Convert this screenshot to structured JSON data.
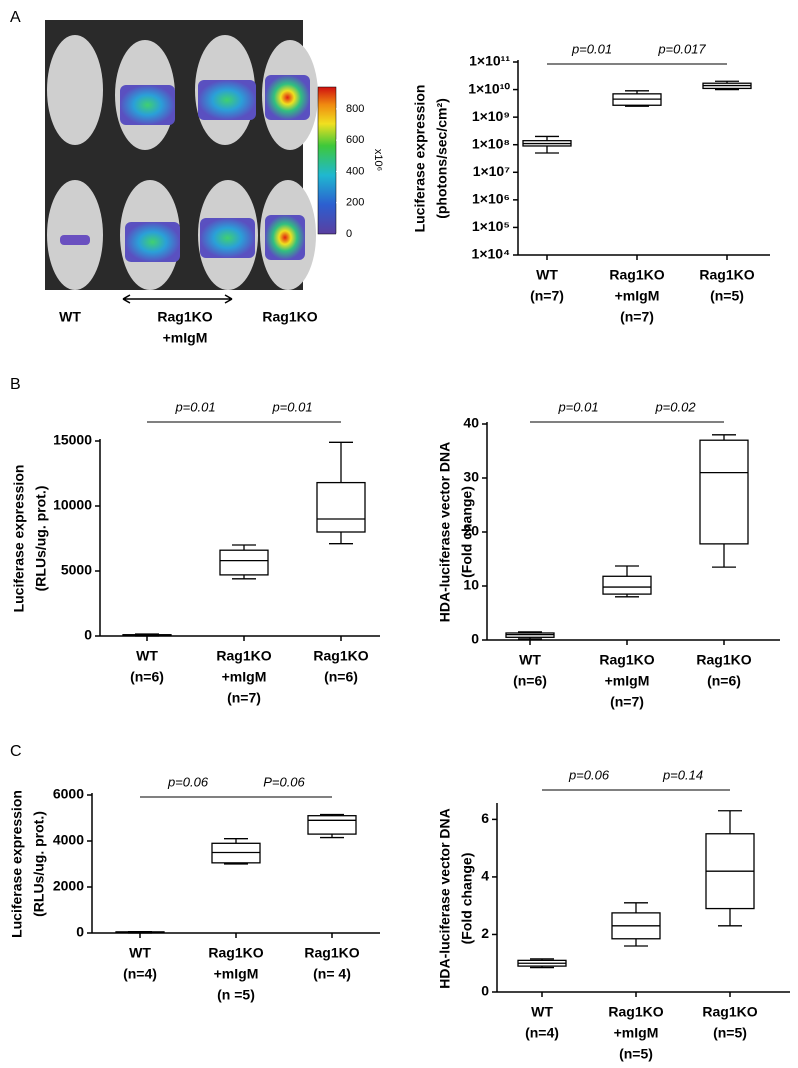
{
  "figure": {
    "panel_labels": [
      "A",
      "B",
      "C"
    ],
    "image": {
      "group_labels": [
        [
          "WT"
        ],
        [
          "Rag1KO",
          "+mIgM"
        ],
        [
          "Rag1KO"
        ]
      ],
      "colorbar": {
        "lim": [
          0,
          940
        ],
        "ticks": [
          0,
          200,
          400,
          600,
          800
        ],
        "unit": "x10⁶"
      }
    }
  },
  "chart_data": [
    {
      "type": "box",
      "log": true,
      "y_label": [
        "Luciferase expression",
        "(photons/sec/cm²)"
      ],
      "categories": [
        [
          "WT",
          "(n=7)"
        ],
        [
          "Rag1KO",
          "+mIgM",
          "(n=7)"
        ],
        [
          "Rag1KO",
          "(n=5)"
        ]
      ],
      "boxes": [
        {
          "min": 50000000,
          "q1": 90000000,
          "median": 110000000,
          "q3": 140000000,
          "max": 200000000
        },
        {
          "min": 2500000000,
          "q1": 2700000000,
          "median": 4500000000,
          "q3": 7000000000,
          "max": 9000000000
        },
        {
          "min": 10000000000,
          "q1": 11000000000,
          "median": 14000000000,
          "q3": 17000000000,
          "max": 20000000000
        }
      ],
      "ylim": [
        10000,
        100000000000
      ],
      "yticks": [
        {
          "value": 10000,
          "label": "1×10⁴"
        },
        {
          "value": 100000,
          "label": "1×10⁵"
        },
        {
          "value": 1000000,
          "label": "1×10⁶"
        },
        {
          "value": 10000000,
          "label": "1×10⁷"
        },
        {
          "value": 100000000,
          "label": "1×10⁸"
        },
        {
          "value": 1000000000,
          "label": "1×10⁹"
        },
        {
          "value": 10000000000,
          "label": "1×10¹⁰"
        },
        {
          "value": 100000000000,
          "label": "1×10¹¹"
        }
      ],
      "annotations": [
        {
          "text": "p=0.01",
          "from": 0,
          "to": 1
        },
        {
          "text": "p=0.017",
          "from": 1,
          "to": 2
        }
      ]
    },
    {
      "type": "box",
      "log": false,
      "y_label": [
        "Luciferase expression",
        "(RLUs/ug. prot.)"
      ],
      "categories": [
        [
          "WT",
          "(n=6)"
        ],
        [
          "Rag1KO",
          "+mIgM",
          "(n=7)"
        ],
        [
          "Rag1KO",
          "(n=6)"
        ]
      ],
      "boxes": [
        {
          "min": 0,
          "q1": 20,
          "median": 60,
          "q3": 100,
          "max": 150
        },
        {
          "min": 4400,
          "q1": 4700,
          "median": 5800,
          "q3": 6600,
          "max": 7000
        },
        {
          "min": 7100,
          "q1": 8000,
          "median": 9000,
          "q3": 11800,
          "max": 14900
        }
      ],
      "ylim": [
        0,
        15000
      ],
      "yticks": [
        0,
        5000,
        10000,
        15000
      ],
      "annotations": [
        {
          "text": "p=0.01",
          "from": 0,
          "to": 1
        },
        {
          "text": "p=0.01",
          "from": 1,
          "to": 2
        }
      ]
    },
    {
      "type": "box",
      "log": false,
      "y_label": [
        "HDA-luciferase vector DNA",
        "(Fold change)"
      ],
      "categories": [
        [
          "WT",
          "(n=6)"
        ],
        [
          "Rag1KO",
          "+mIgM",
          "(n=7)"
        ],
        [
          "Rag1KO",
          "(n=6)"
        ]
      ],
      "boxes": [
        {
          "min": 0.2,
          "q1": 0.5,
          "median": 1,
          "q3": 1.3,
          "max": 1.5
        },
        {
          "min": 8,
          "q1": 8.5,
          "median": 9.8,
          "q3": 11.8,
          "max": 13.7
        },
        {
          "min": 13.5,
          "q1": 17.8,
          "median": 31,
          "q3": 37,
          "max": 38
        }
      ],
      "ylim": [
        0,
        40
      ],
      "yticks": [
        0,
        10,
        20,
        30,
        40
      ],
      "annotations": [
        {
          "text": "p=0.01",
          "from": 0,
          "to": 1
        },
        {
          "text": "p=0.02",
          "from": 1,
          "to": 2
        }
      ]
    },
    {
      "type": "box",
      "log": false,
      "y_label": [
        "Luciferase expression",
        "(RLUs/ug. prot.)"
      ],
      "categories": [
        [
          "WT",
          "(n=4)"
        ],
        [
          "Rag1KO",
          "+mIgM",
          "(n =5)"
        ],
        [
          "Rag1KO",
          "(n= 4)"
        ]
      ],
      "boxes": [
        {
          "min": 0,
          "q1": 10,
          "median": 30,
          "q3": 50,
          "max": 60
        },
        {
          "min": 3000,
          "q1": 3050,
          "median": 3500,
          "q3": 3900,
          "max": 4100
        },
        {
          "min": 4150,
          "q1": 4300,
          "median": 4900,
          "q3": 5100,
          "max": 5150
        }
      ],
      "ylim": [
        0,
        6000
      ],
      "yticks": [
        0,
        2000,
        4000,
        6000
      ],
      "annotations": [
        {
          "text": "p=0.06",
          "from": 0,
          "to": 1
        },
        {
          "text": "P=0.06",
          "from": 1,
          "to": 2
        }
      ]
    },
    {
      "type": "box",
      "log": false,
      "y_label": [
        "HDA-luciferase vector DNA",
        "(Fold change)"
      ],
      "categories": [
        [
          "WT",
          "(n=4)"
        ],
        [
          "Rag1KO",
          "+mIgM",
          "(n=5)"
        ],
        [
          "Rag1KO",
          "(n=5)"
        ]
      ],
      "boxes": [
        {
          "min": 0.85,
          "q1": 0.9,
          "median": 1,
          "q3": 1.1,
          "max": 1.15
        },
        {
          "min": 1.6,
          "q1": 1.85,
          "median": 2.3,
          "q3": 2.75,
          "max": 3.1
        },
        {
          "min": 2.3,
          "q1": 2.9,
          "median": 4.2,
          "q3": 5.5,
          "max": 6.3
        }
      ],
      "ylim": [
        0,
        6.5
      ],
      "yticks": [
        0,
        2,
        4,
        6
      ],
      "annotations": [
        {
          "text": "p=0.06",
          "from": 0,
          "to": 1
        },
        {
          "text": "p=0.14",
          "from": 1,
          "to": 2
        }
      ]
    }
  ]
}
